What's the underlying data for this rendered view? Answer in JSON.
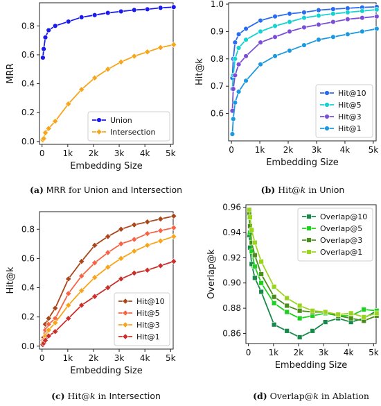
{
  "chart_data": [
    {
      "id": "a",
      "type": "line",
      "xlabel": "Embedding Size",
      "ylabel": "MRR",
      "xlim": [
        -100,
        5100
      ],
      "ylim": [
        -0.02,
        0.96
      ],
      "xticks": [
        0,
        1000,
        2000,
        3000,
        4000,
        5000
      ],
      "xtick_labels": [
        "0",
        "1k",
        "2k",
        "3k",
        "4k",
        "5k"
      ],
      "yticks": [
        0.0,
        0.2,
        0.4,
        0.6,
        0.8
      ],
      "ytick_labels": [
        "0.0",
        "0.2",
        "0.4",
        "0.6",
        "0.8"
      ],
      "legend_position": "bottom-right",
      "x": [
        32,
        64,
        128,
        256,
        512,
        1024,
        1536,
        2048,
        2560,
        3072,
        3584,
        4096,
        4608,
        5120
      ],
      "series": [
        {
          "name": "Union",
          "color": "#1a1aee",
          "marker": "circle",
          "values": [
            0.58,
            0.64,
            0.72,
            0.77,
            0.8,
            0.83,
            0.86,
            0.875,
            0.89,
            0.9,
            0.91,
            0.915,
            0.925,
            0.93
          ]
        },
        {
          "name": "Intersection",
          "color": "#f7a51b",
          "marker": "diamond",
          "values": [
            0.01,
            0.02,
            0.06,
            0.09,
            0.14,
            0.26,
            0.36,
            0.44,
            0.5,
            0.55,
            0.59,
            0.62,
            0.65,
            0.67
          ]
        }
      ],
      "caption": {
        "label": "(a)",
        "parts": [
          {
            "text": " MRR",
            "style": "sans"
          },
          {
            "text": " for ",
            "style": "serif"
          },
          {
            "text": "Union",
            "style": "sans"
          },
          {
            "text": " and ",
            "style": "serif"
          },
          {
            "text": "Intersection",
            "style": "sans"
          }
        ]
      }
    },
    {
      "id": "b",
      "type": "line",
      "xlabel": "Embedding Size",
      "ylabel": "Hit@k",
      "xlim": [
        -100,
        5100
      ],
      "ylim": [
        0.5,
        1.005
      ],
      "xticks": [
        0,
        1000,
        2000,
        3000,
        4000,
        5000
      ],
      "xtick_labels": [
        "0",
        "1k",
        "2k",
        "3k",
        "4k",
        "5k"
      ],
      "yticks": [
        0.6,
        0.7,
        0.8,
        0.9,
        1.0
      ],
      "ytick_labels": [
        "0.6",
        "0.7",
        "0.8",
        "0.9",
        "1.0"
      ],
      "legend_position": "bottom-right",
      "x": [
        32,
        64,
        128,
        256,
        512,
        1024,
        1536,
        2048,
        2560,
        3072,
        3584,
        4096,
        4608,
        5120
      ],
      "series": [
        {
          "name": "Hit@10",
          "color": "#2a6cf0",
          "marker": "circle",
          "values": [
            0.73,
            0.8,
            0.86,
            0.89,
            0.91,
            0.94,
            0.955,
            0.965,
            0.97,
            0.978,
            0.982,
            0.985,
            0.988,
            0.99
          ]
        },
        {
          "name": "Hit@5",
          "color": "#14d2d2",
          "marker": "circle",
          "values": [
            0.69,
            0.74,
            0.8,
            0.84,
            0.87,
            0.9,
            0.92,
            0.935,
            0.95,
            0.958,
            0.965,
            0.97,
            0.975,
            0.98
          ]
        },
        {
          "name": "Hit@3",
          "color": "#7a4fd6",
          "marker": "circle",
          "values": [
            0.61,
            0.69,
            0.74,
            0.78,
            0.81,
            0.86,
            0.88,
            0.9,
            0.915,
            0.925,
            0.935,
            0.945,
            0.95,
            0.955
          ]
        },
        {
          "name": "Hit@1",
          "color": "#1b98e0",
          "marker": "circle",
          "values": [
            0.525,
            0.58,
            0.64,
            0.68,
            0.72,
            0.78,
            0.81,
            0.83,
            0.85,
            0.87,
            0.88,
            0.89,
            0.9,
            0.91
          ]
        }
      ],
      "caption": {
        "label": "(b)",
        "parts": [
          {
            "text": " Hit@",
            "style": "serif"
          },
          {
            "text": "k",
            "style": "italic"
          },
          {
            "text": " in ",
            "style": "serif"
          },
          {
            "text": "Union",
            "style": "sans"
          }
        ]
      }
    },
    {
      "id": "c",
      "type": "line",
      "xlabel": "Embedding Size",
      "ylabel": "Hit@k",
      "xlim": [
        -100,
        5100
      ],
      "ylim": [
        -0.02,
        0.92
      ],
      "xticks": [
        0,
        1000,
        2000,
        3000,
        4000,
        5000
      ],
      "xtick_labels": [
        "0",
        "1k",
        "2k",
        "3k",
        "4k",
        "5k"
      ],
      "yticks": [
        0.0,
        0.2,
        0.4,
        0.6,
        0.8
      ],
      "ytick_labels": [
        "0.0",
        "0.2",
        "0.4",
        "0.6",
        "0.8"
      ],
      "legend_position": "bottom-right",
      "x": [
        32,
        64,
        128,
        256,
        512,
        1024,
        1536,
        2048,
        2560,
        3072,
        3584,
        4096,
        4608,
        5120
      ],
      "series": [
        {
          "name": "Hit@10",
          "color": "#a9461a",
          "marker": "diamond",
          "values": [
            0.04,
            0.06,
            0.15,
            0.19,
            0.26,
            0.46,
            0.58,
            0.69,
            0.75,
            0.8,
            0.83,
            0.85,
            0.87,
            0.89
          ]
        },
        {
          "name": "Hit@5",
          "color": "#f56545",
          "marker": "diamond",
          "values": [
            0.02,
            0.04,
            0.11,
            0.15,
            0.19,
            0.36,
            0.48,
            0.57,
            0.64,
            0.7,
            0.73,
            0.77,
            0.79,
            0.81
          ]
        },
        {
          "name": "Hit@3",
          "color": "#f7a51b",
          "marker": "diamond",
          "values": [
            0.02,
            0.03,
            0.07,
            0.11,
            0.16,
            0.28,
            0.38,
            0.47,
            0.54,
            0.6,
            0.65,
            0.69,
            0.72,
            0.75
          ]
        },
        {
          "name": "Hit@1",
          "color": "#c9302b",
          "marker": "diamond",
          "values": [
            0.01,
            0.02,
            0.04,
            0.07,
            0.1,
            0.19,
            0.28,
            0.34,
            0.4,
            0.46,
            0.5,
            0.52,
            0.55,
            0.58
          ]
        }
      ],
      "caption": {
        "label": "(c)",
        "parts": [
          {
            "text": " Hit@",
            "style": "serif"
          },
          {
            "text": "k",
            "style": "italic"
          },
          {
            "text": " in ",
            "style": "serif"
          },
          {
            "text": "Intersection",
            "style": "sans"
          }
        ]
      }
    },
    {
      "id": "d",
      "type": "line",
      "xlabel": "Embedding Size",
      "ylabel": "Overlap@k",
      "xlim": [
        -100,
        5100
      ],
      "ylim": [
        0.852,
        0.962
      ],
      "xticks": [
        0,
        1000,
        2000,
        3000,
        4000,
        5000
      ],
      "xtick_labels": [
        "0",
        "1k",
        "2k",
        "3k",
        "4k",
        "5k"
      ],
      "yticks": [
        0.86,
        0.88,
        0.9,
        0.92,
        0.94,
        0.96
      ],
      "ytick_labels": [
        "0.86",
        "0.88",
        "0.90",
        "0.92",
        "0.94",
        "0.96"
      ],
      "legend_position": "top-right",
      "x": [
        32,
        64,
        128,
        256,
        512,
        1024,
        1536,
        2048,
        2560,
        3072,
        3584,
        4096,
        4608,
        5120
      ],
      "series": [
        {
          "name": "Overlap@10",
          "color": "#178a4a",
          "marker": "square",
          "values": [
            0.938,
            0.928,
            0.915,
            0.904,
            0.893,
            0.867,
            0.862,
            0.857,
            0.862,
            0.869,
            0.872,
            0.869,
            0.872,
            0.878
          ]
        },
        {
          "name": "Overlap@5",
          "color": "#1fd01f",
          "marker": "square",
          "values": [
            0.952,
            0.94,
            0.925,
            0.913,
            0.9,
            0.884,
            0.877,
            0.872,
            0.874,
            0.876,
            0.874,
            0.874,
            0.879,
            0.878
          ]
        },
        {
          "name": "Overlap@3",
          "color": "#4a8f1a",
          "marker": "square",
          "values": [
            0.955,
            0.945,
            0.932,
            0.922,
            0.907,
            0.889,
            0.882,
            0.878,
            0.877,
            0.877,
            0.874,
            0.872,
            0.87,
            0.874
          ]
        },
        {
          "name": "Overlap@1",
          "color": "#9bd41f",
          "marker": "square",
          "values": [
            0.958,
            0.952,
            0.942,
            0.932,
            0.917,
            0.897,
            0.888,
            0.882,
            0.878,
            0.877,
            0.875,
            0.876,
            0.873,
            0.876
          ]
        }
      ],
      "caption": {
        "label": "(d)",
        "parts": [
          {
            "text": " Overlap@",
            "style": "serif"
          },
          {
            "text": "k",
            "style": "italic"
          },
          {
            "text": " in Ablation",
            "style": "serif"
          }
        ]
      }
    }
  ]
}
